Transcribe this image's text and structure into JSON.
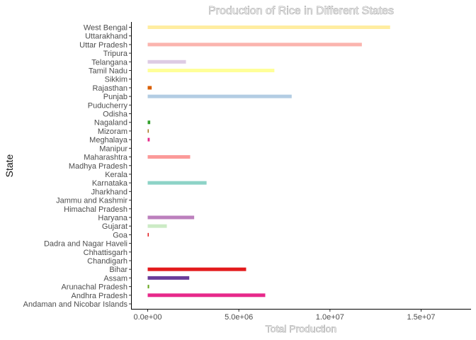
{
  "chart_data": {
    "type": "bar",
    "orientation": "horizontal",
    "title": "Production of Rice in Different States",
    "xlabel": "Total Production",
    "ylabel": "State",
    "xlim": [
      0,
      17500000
    ],
    "xticks": [
      0,
      5000000,
      10000000,
      15000000
    ],
    "xtick_labels": [
      "0.0e+00",
      "5.0e+06",
      "1.0e+07",
      "1.5e+07"
    ],
    "grid": false,
    "legend": "none",
    "categories": [
      "Andaman and Nicobar Islands",
      "Andhra Pradesh",
      "Arunachal Pradesh",
      "Assam",
      "Bihar",
      "Chandigarh",
      "Chhattisgarh",
      "Dadra and Nagar Haveli",
      "Goa",
      "Gujarat",
      "Haryana",
      "Himachal Pradesh",
      "Jammu and Kashmir ",
      "Jharkhand",
      "Karnataka",
      "Kerala",
      "Madhya Pradesh",
      "Maharashtra",
      "Manipur",
      "Meghalaya",
      "Mizoram",
      "Nagaland",
      "Odisha",
      "Puducherry",
      "Punjab",
      "Rajasthan",
      "Sikkim",
      "Tamil Nadu",
      "Telangana ",
      "Tripura",
      "Uttar Pradesh",
      "Uttarakhand",
      "West Bengal"
    ],
    "values": [
      0,
      6450000,
      80000,
      2280000,
      5400000,
      0,
      0,
      0,
      25000,
      1050000,
      2550000,
      0,
      0,
      0,
      3230000,
      0,
      0,
      2330000,
      0,
      110000,
      45000,
      140000,
      0,
      0,
      7900000,
      220000,
      0,
      6950000,
      2100000,
      0,
      11750000,
      0,
      13300000
    ],
    "colors": [
      "#e7298a",
      "#e7298a",
      "#66a61e",
      "#6a3d9a",
      "#e31a1c",
      "#cccccc",
      "#cccccc",
      "#cccccc",
      "#e31a1c",
      "#ccebc5",
      "#bc80bd",
      "#cccccc",
      "#cccccc",
      "#cccccc",
      "#8dd3c7",
      "#cccccc",
      "#cccccc",
      "#fb9a99",
      "#cccccc",
      "#e7298a",
      "#a6761d",
      "#33a02c",
      "#cccccc",
      "#cccccc",
      "#b3cde3",
      "#d95f02",
      "#cccccc",
      "#ffff99",
      "#decbe4",
      "#cccccc",
      "#fbb4ae",
      "#cccccc",
      "#ffeda0"
    ]
  }
}
